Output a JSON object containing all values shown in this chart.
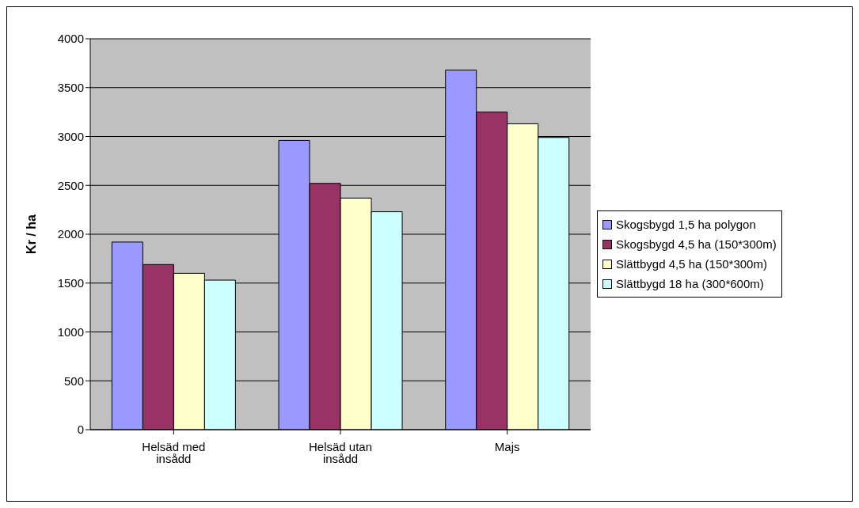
{
  "chart_data": {
    "type": "bar",
    "ylabel": "Kr / ha",
    "categories": [
      "Helsäd med insådd",
      "Helsäd utan insådd",
      "Majs"
    ],
    "series": [
      {
        "name": "Skogsbygd 1,5 ha polygon",
        "color": "#9999ff",
        "values": [
          1920,
          2960,
          3680
        ]
      },
      {
        "name": "Skogsbygd 4,5 ha (150*300m)",
        "color": "#993366",
        "values": [
          1690,
          2520,
          3250
        ]
      },
      {
        "name": "Slättbygd 4,5 ha (150*300m)",
        "color": "#ffffcc",
        "values": [
          1600,
          2370,
          3130
        ]
      },
      {
        "name": "Slättbygd 18 ha (300*600m)",
        "color": "#ccffff",
        "values": [
          1530,
          2230,
          2990
        ]
      }
    ],
    "ylim": [
      0,
      4000
    ],
    "yticks": [
      0,
      500,
      1000,
      1500,
      2000,
      2500,
      3000,
      3500,
      4000
    ],
    "grid": "y",
    "legend": "right"
  }
}
